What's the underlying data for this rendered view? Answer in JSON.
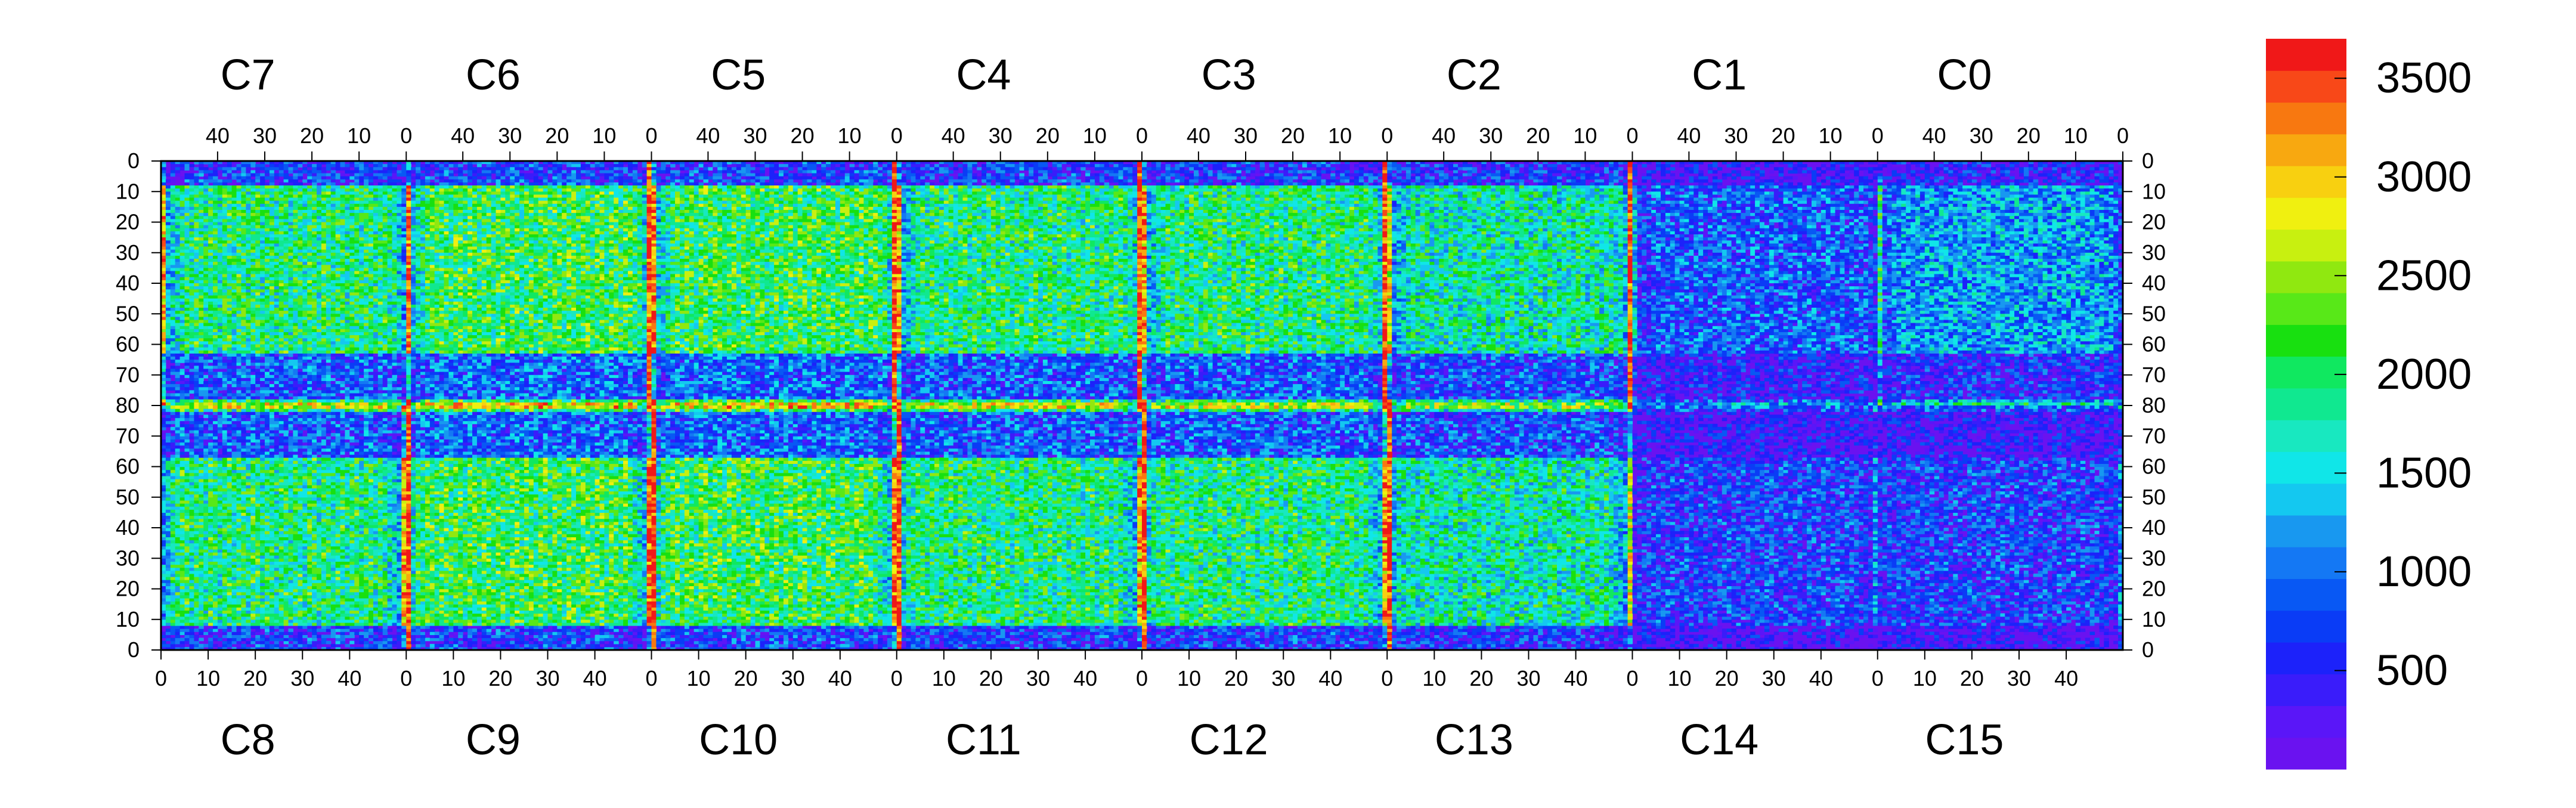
{
  "chart_data": {
    "type": "heatmap",
    "title": "",
    "xlabel": "",
    "ylabel": "",
    "top_chips": [
      "C7",
      "C6",
      "C5",
      "C4",
      "C3",
      "C2",
      "C1",
      "C0"
    ],
    "bottom_chips": [
      "C8",
      "C9",
      "C10",
      "C11",
      "C12",
      "C13",
      "C14",
      "C15"
    ],
    "top_x_ticks": [
      "40",
      "30",
      "20",
      "10",
      "0"
    ],
    "bottom_x_ticks": [
      "0",
      "10",
      "20",
      "30",
      "40"
    ],
    "y_ticks_upper": [
      "0",
      "10",
      "20",
      "30",
      "40",
      "50",
      "60",
      "70",
      "80"
    ],
    "y_ticks_lower": [
      "70",
      "60",
      "50",
      "40",
      "30",
      "20",
      "10",
      "0"
    ],
    "chip_columns": 52,
    "chip_rows": 80,
    "z_range": [
      0,
      3700
    ],
    "colorbar_ticks": [
      {
        "value": 500,
        "label": "500"
      },
      {
        "value": 1000,
        "label": "1000"
      },
      {
        "value": 1500,
        "label": "1500"
      },
      {
        "value": 2000,
        "label": "2000"
      },
      {
        "value": 2500,
        "label": "2500"
      },
      {
        "value": 3000,
        "label": "3000"
      },
      {
        "value": 3500,
        "label": "3500"
      }
    ],
    "palette": [
      "#6a12f0",
      "#5a16f8",
      "#3a1cfa",
      "#1c22fa",
      "#0a3cf6",
      "#0858f4",
      "#1478f4",
      "#1898f0",
      "#14c8f0",
      "#10e6e8",
      "#18e8c0",
      "#10e890",
      "#10e860",
      "#18e010",
      "#58e818",
      "#90e810",
      "#c8f010",
      "#f0f010",
      "#f8d010",
      "#f8a810",
      "#f87810",
      "#f84818",
      "#f01818"
    ],
    "column_profile": [
      0.35,
      0.45,
      0.55,
      0.55,
      0.6,
      0.6,
      0.55,
      0.6,
      0.6,
      0.55,
      0.6,
      0.6,
      0.55,
      0.6,
      0.6,
      0.55,
      0.6,
      0.6,
      0.55,
      0.6,
      0.6,
      0.55,
      0.6,
      0.6,
      0.55,
      0.6,
      0.6,
      0.55,
      0.6,
      0.6,
      0.55,
      0.6,
      0.6,
      0.55,
      0.6,
      0.6,
      0.55,
      0.6,
      0.6,
      0.55,
      0.6,
      0.6,
      0.55,
      0.6,
      0.6,
      0.55,
      0.6,
      0.55,
      0.5,
      0.45,
      0.4,
      0.95
    ],
    "chip_levels": {
      "C7": 0.55,
      "C6": 0.6,
      "C5": 0.6,
      "C4": 0.55,
      "C3": 0.55,
      "C2": 0.5,
      "C1": 0.25,
      "C0": 0.35,
      "C8": 0.55,
      "C9": 0.6,
      "C10": 0.6,
      "C11": 0.55,
      "C12": 0.55,
      "C13": 0.5,
      "C14": 0.2,
      "C15": 0.2
    }
  }
}
